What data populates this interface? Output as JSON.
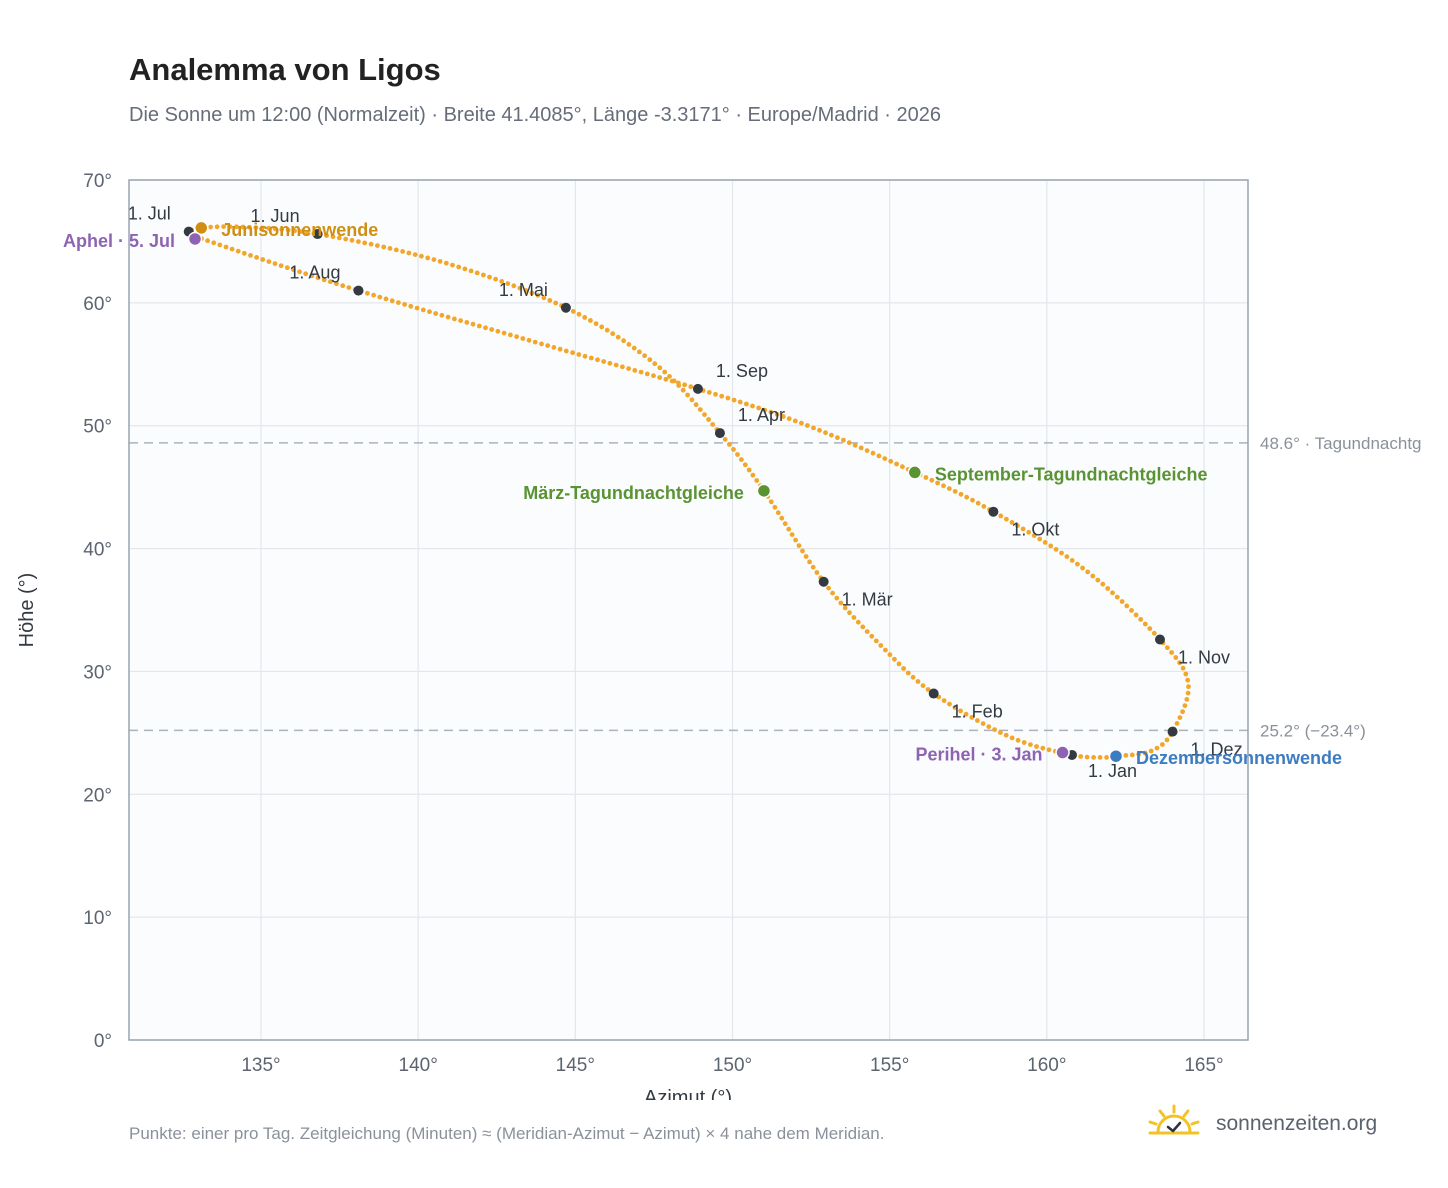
{
  "header": {
    "title": "Analemma von Ligos",
    "subtitle": "Die Sonne um 12:00 (Normalzeit) · Breite 41.4085°, Länge -3.3171° · Europe/Madrid · 2026"
  },
  "footer": {
    "note": "Punkte: einer pro Tag. Zeitgleichung (Minuten) ≈ (Meridian-Azimut − Azimut) × 4 nahe dem Meridian.",
    "brand": "sonnenzeiten.org"
  },
  "colors": {
    "curve": "#f2a62a",
    "month_marker": "#333a42",
    "june_solstice": "#d08f12",
    "december_solstice": "#3d7cc0",
    "equinox": "#5a9331",
    "apsis": "#8e63b3",
    "plot_bg": "#fafcfe",
    "grid": "#e3e7ec",
    "axis": "#99a3b0"
  },
  "chart_data": {
    "type": "scatter",
    "title": "Analemma von Ligos",
    "xlabel": "Azimut (°)",
    "ylabel": "Höhe (°)",
    "xlim": [
      130.8,
      166.4
    ],
    "ylim": [
      0,
      70
    ],
    "xticks": [
      135,
      140,
      145,
      150,
      155,
      160,
      165
    ],
    "yticks": [
      0,
      10,
      20,
      30,
      40,
      50,
      60,
      70
    ],
    "xtick_labels": [
      "135°",
      "140°",
      "145°",
      "150°",
      "155°",
      "160°",
      "165°"
    ],
    "ytick_labels": [
      "0°",
      "10°",
      "20°",
      "30°",
      "40°",
      "50°",
      "60°",
      "70°"
    ],
    "grid": true,
    "month_points": [
      {
        "label": "1. Jan",
        "az": 160.8,
        "alt": 23.2
      },
      {
        "label": "1. Feb",
        "az": 156.4,
        "alt": 28.2
      },
      {
        "label": "1. Mär",
        "az": 152.9,
        "alt": 37.3
      },
      {
        "label": "1. Apr",
        "az": 149.6,
        "alt": 49.4
      },
      {
        "label": "1. Mai",
        "az": 144.7,
        "alt": 59.6
      },
      {
        "label": "1. Jun",
        "az": 136.8,
        "alt": 65.6
      },
      {
        "label": "1. Jul",
        "az": 132.7,
        "alt": 65.8
      },
      {
        "label": "1. Aug",
        "az": 138.1,
        "alt": 61.0
      },
      {
        "label": "1. Sep",
        "az": 148.9,
        "alt": 53.0
      },
      {
        "label": "1. Okt",
        "az": 158.3,
        "alt": 43.0
      },
      {
        "label": "1. Nov",
        "az": 163.6,
        "alt": 32.6
      },
      {
        "label": "1. Dez",
        "az": 164.0,
        "alt": 25.1
      }
    ],
    "events": [
      {
        "label": "Junisonnenwende",
        "az": 133.1,
        "alt": 66.1,
        "color": "#d08f12"
      },
      {
        "label": "Dezembersonnenwende",
        "az": 162.2,
        "alt": 23.1,
        "color": "#3d7cc0"
      },
      {
        "label": "März-Tagundnachtgleiche",
        "az": 151.0,
        "alt": 44.7,
        "color": "#5a9331"
      },
      {
        "label": "September-Tagundnachtgleiche",
        "az": 155.8,
        "alt": 46.2,
        "color": "#5a9331"
      },
      {
        "label": "Aphel · 5. Jul",
        "az": 132.9,
        "alt": 65.2,
        "color": "#8e63b3"
      },
      {
        "label": "Perihel · 3. Jan",
        "az": 160.5,
        "alt": 23.4,
        "color": "#8e63b3"
      }
    ],
    "reference_lines": [
      {
        "alt": 48.6,
        "label": "48.6° · Tagundnachtg"
      },
      {
        "alt": 25.2,
        "label": "25.2° (−23.4°)"
      }
    ],
    "curve_path": [
      {
        "az": 161.9,
        "alt": 23.0
      },
      {
        "az": 160.8,
        "alt": 23.2
      },
      {
        "az": 158.8,
        "alt": 24.7
      },
      {
        "az": 156.4,
        "alt": 28.2
      },
      {
        "az": 154.8,
        "alt": 31.9
      },
      {
        "az": 152.9,
        "alt": 37.3
      },
      {
        "az": 151.0,
        "alt": 44.7
      },
      {
        "az": 149.6,
        "alt": 49.4
      },
      {
        "az": 147.6,
        "alt": 54.9
      },
      {
        "az": 144.7,
        "alt": 59.6
      },
      {
        "az": 140.8,
        "alt": 63.3
      },
      {
        "az": 136.8,
        "alt": 65.6
      },
      {
        "az": 134.0,
        "alt": 66.2
      },
      {
        "az": 132.7,
        "alt": 65.8
      },
      {
        "az": 133.6,
        "alt": 64.8
      },
      {
        "az": 138.1,
        "alt": 61.0
      },
      {
        "az": 143.6,
        "alt": 56.9
      },
      {
        "az": 148.9,
        "alt": 53.0
      },
      {
        "az": 152.4,
        "alt": 50.0
      },
      {
        "az": 155.8,
        "alt": 46.2
      },
      {
        "az": 158.3,
        "alt": 43.0
      },
      {
        "az": 161.2,
        "alt": 38.3
      },
      {
        "az": 163.6,
        "alt": 32.6
      },
      {
        "az": 164.5,
        "alt": 29.0
      },
      {
        "az": 164.0,
        "alt": 25.1
      },
      {
        "az": 163.3,
        "alt": 23.5
      },
      {
        "az": 162.2,
        "alt": 23.1
      },
      {
        "az": 161.9,
        "alt": 23.0
      }
    ]
  }
}
